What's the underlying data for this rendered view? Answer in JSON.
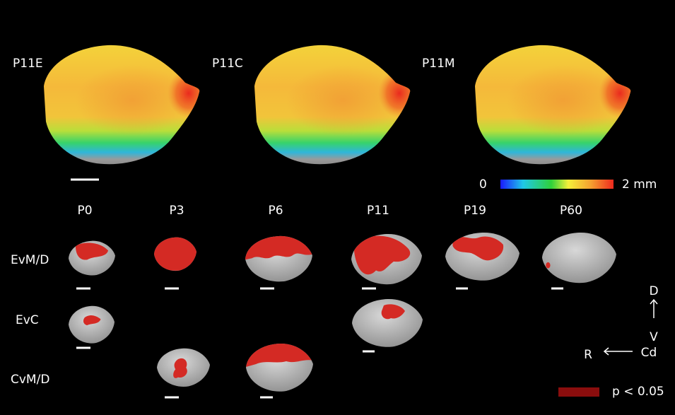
{
  "top_panels": {
    "labels": [
      "P11E",
      "P11C",
      "P11M"
    ]
  },
  "colorbar": {
    "min_label": "0",
    "max_label": "2 mm"
  },
  "columns": [
    "P0",
    "P3",
    "P6",
    "P11",
    "P19",
    "P60"
  ],
  "rows": [
    "EvM/D",
    "EvC",
    "CvM/D"
  ],
  "orientation": {
    "dorsal": "D",
    "ventral": "V",
    "rostral": "R",
    "caudal": "Cd"
  },
  "legend": {
    "label": "p < 0.05"
  }
}
